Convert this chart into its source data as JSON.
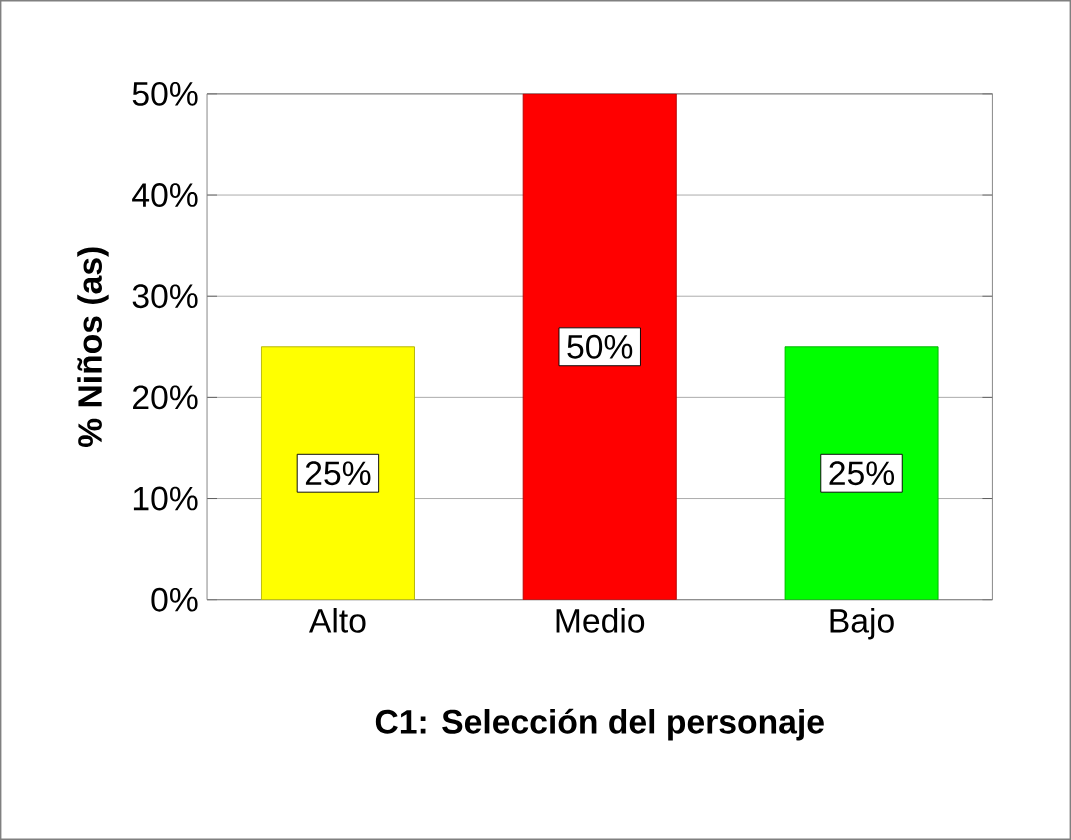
{
  "chart_data": {
    "type": "bar",
    "xlabel": "C1: Selección del personaje",
    "ylabel": "% Niños (as)",
    "categories": [
      "Alto",
      "Medio",
      "Bajo"
    ],
    "values": [
      25,
      50,
      25
    ],
    "colors": [
      "#ffff00",
      "#ff0000",
      "#00ff00"
    ],
    "value_labels": [
      "25%",
      "50%",
      "25%"
    ],
    "ylim": [
      0,
      50
    ],
    "yticks": [
      {
        "value": 0,
        "label": "0%"
      },
      {
        "value": 10,
        "label": "10%"
      },
      {
        "value": 20,
        "label": "20%"
      },
      {
        "value": 30,
        "label": "30%"
      },
      {
        "value": 40,
        "label": "40%"
      },
      {
        "value": 50,
        "label": "50%"
      }
    ],
    "grid": "y"
  }
}
